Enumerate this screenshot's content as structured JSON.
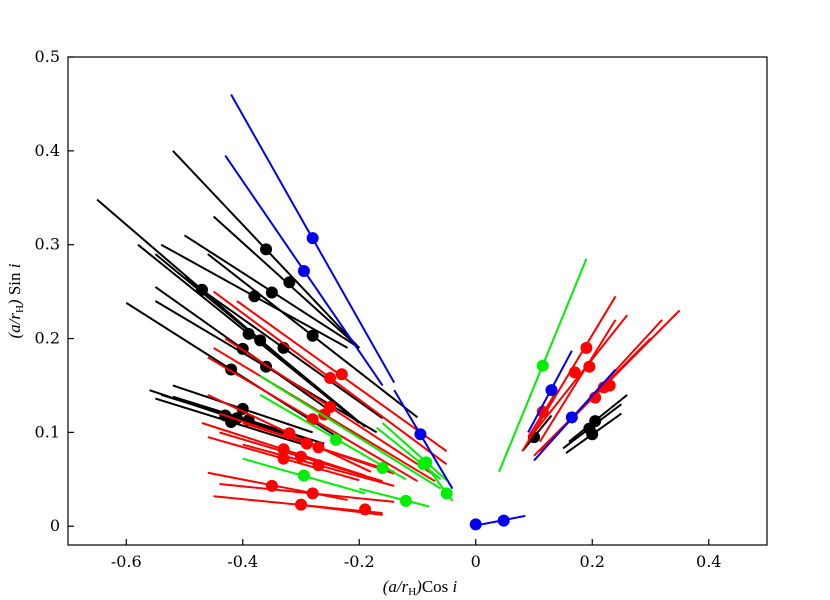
{
  "chart_data": {
    "type": "scatter",
    "xlabel": "(a/rH)Cos i",
    "ylabel": "(a/rH) Sin i",
    "xlim": [
      -0.7,
      0.5
    ],
    "ylim": [
      -0.02,
      0.5
    ],
    "x_ticks": [
      -0.6,
      -0.4,
      -0.2,
      0,
      0.2,
      0.4
    ],
    "x_tick_labels": [
      "-0.6",
      "-0.4",
      "-0.2",
      "0",
      "0.2",
      "0.4"
    ],
    "y_ticks": [
      0,
      0.1,
      0.2,
      0.3,
      0.4,
      0.5
    ],
    "y_tick_labels": [
      "0",
      "0.1",
      "0.2",
      "0.3",
      "0.4",
      "0.5"
    ],
    "grid": false,
    "colors": {
      "black": "#000000",
      "red": "#ff0000",
      "green": "#00ee00",
      "blue": "#0000ee"
    },
    "series": [
      {
        "color": "black",
        "points": [
          {
            "x": -0.36,
            "y": 0.295,
            "x1": -0.52,
            "y1": 0.4,
            "x2": -0.2,
            "y2": 0.19
          },
          {
            "x": -0.47,
            "y": 0.252,
            "x1": -0.65,
            "y1": 0.348,
            "x2": -0.29,
            "y2": 0.156
          },
          {
            "x": -0.35,
            "y": 0.249,
            "x1": -0.5,
            "y1": 0.31,
            "x2": -0.2,
            "y2": 0.19
          },
          {
            "x": -0.32,
            "y": 0.26,
            "x1": -0.45,
            "y1": 0.33,
            "x2": -0.2,
            "y2": 0.19
          },
          {
            "x": -0.38,
            "y": 0.245,
            "x1": -0.54,
            "y1": 0.3,
            "x2": -0.22,
            "y2": 0.19
          },
          {
            "x": -0.28,
            "y": 0.203,
            "x1": -0.46,
            "y1": 0.29,
            "x2": -0.1,
            "y2": 0.116
          },
          {
            "x": -0.39,
            "y": 0.205,
            "x1": -0.58,
            "y1": 0.3,
            "x2": -0.2,
            "y2": 0.11
          },
          {
            "x": -0.37,
            "y": 0.198,
            "x1": -0.55,
            "y1": 0.29,
            "x2": -0.19,
            "y2": 0.106
          },
          {
            "x": -0.4,
            "y": 0.189,
            "x1": -0.55,
            "y1": 0.255,
            "x2": -0.25,
            "y2": 0.123
          },
          {
            "x": -0.33,
            "y": 0.19,
            "x1": -0.5,
            "y1": 0.265,
            "x2": -0.16,
            "y2": 0.115
          },
          {
            "x": -0.36,
            "y": 0.17,
            "x1": -0.55,
            "y1": 0.24,
            "x2": -0.17,
            "y2": 0.1
          },
          {
            "x": -0.42,
            "y": 0.167,
            "x1": -0.6,
            "y1": 0.238,
            "x2": -0.24,
            "y2": 0.096
          },
          {
            "x": -0.4,
            "y": 0.125,
            "x1": -0.52,
            "y1": 0.15,
            "x2": -0.28,
            "y2": 0.1
          },
          {
            "x": -0.43,
            "y": 0.118,
            "x1": -0.56,
            "y1": 0.145,
            "x2": -0.3,
            "y2": 0.091
          },
          {
            "x": -0.41,
            "y": 0.115,
            "x1": -0.54,
            "y1": 0.14,
            "x2": -0.28,
            "y2": 0.09
          },
          {
            "x": -0.39,
            "y": 0.113,
            "x1": -0.52,
            "y1": 0.138,
            "x2": -0.26,
            "y2": 0.088
          },
          {
            "x": -0.42,
            "y": 0.111,
            "x1": -0.55,
            "y1": 0.136,
            "x2": -0.29,
            "y2": 0.086
          },
          {
            "x": 0.1,
            "y": 0.095,
            "x1": 0.08,
            "y1": 0.08,
            "x2": 0.13,
            "y2": 0.118
          },
          {
            "x": 0.205,
            "y": 0.112,
            "x1": 0.16,
            "y1": 0.09,
            "x2": 0.26,
            "y2": 0.14
          },
          {
            "x": 0.195,
            "y": 0.104,
            "x1": 0.15,
            "y1": 0.083,
            "x2": 0.25,
            "y2": 0.13
          },
          {
            "x": 0.2,
            "y": 0.098,
            "x1": 0.155,
            "y1": 0.078,
            "x2": 0.25,
            "y2": 0.12
          }
        ]
      },
      {
        "color": "red",
        "points": [
          {
            "x": -0.23,
            "y": 0.162,
            "x1": -0.41,
            "y1": 0.24,
            "x2": -0.05,
            "y2": 0.08
          },
          {
            "x": -0.25,
            "y": 0.158,
            "x1": -0.45,
            "y1": 0.25,
            "x2": -0.05,
            "y2": 0.066
          },
          {
            "x": -0.25,
            "y": 0.127,
            "x1": -0.43,
            "y1": 0.2,
            "x2": -0.07,
            "y2": 0.054
          },
          {
            "x": -0.26,
            "y": 0.119,
            "x1": -0.45,
            "y1": 0.19,
            "x2": -0.07,
            "y2": 0.048
          },
          {
            "x": -0.28,
            "y": 0.114,
            "x1": -0.46,
            "y1": 0.18,
            "x2": -0.1,
            "y2": 0.048
          },
          {
            "x": -0.32,
            "y": 0.099,
            "x1": -0.46,
            "y1": 0.14,
            "x2": -0.18,
            "y2": 0.058
          },
          {
            "x": -0.29,
            "y": 0.088,
            "x1": -0.44,
            "y1": 0.12,
            "x2": -0.14,
            "y2": 0.056
          },
          {
            "x": -0.33,
            "y": 0.082,
            "x1": -0.47,
            "y1": 0.11,
            "x2": -0.19,
            "y2": 0.054
          },
          {
            "x": -0.27,
            "y": 0.084,
            "x1": -0.4,
            "y1": 0.11,
            "x2": -0.14,
            "y2": 0.058
          },
          {
            "x": -0.3,
            "y": 0.074,
            "x1": -0.44,
            "y1": 0.1,
            "x2": -0.16,
            "y2": 0.048
          },
          {
            "x": -0.33,
            "y": 0.072,
            "x1": -0.46,
            "y1": 0.095,
            "x2": -0.2,
            "y2": 0.049
          },
          {
            "x": -0.27,
            "y": 0.065,
            "x1": -0.4,
            "y1": 0.087,
            "x2": -0.14,
            "y2": 0.043
          },
          {
            "x": -0.35,
            "y": 0.043,
            "x1": -0.46,
            "y1": 0.057,
            "x2": -0.22,
            "y2": 0.028
          },
          {
            "x": -0.28,
            "y": 0.035,
            "x1": -0.44,
            "y1": 0.045,
            "x2": -0.14,
            "y2": 0.026
          },
          {
            "x": -0.3,
            "y": 0.023,
            "x1": -0.45,
            "y1": 0.032,
            "x2": -0.16,
            "y2": 0.014
          },
          {
            "x": -0.19,
            "y": 0.018,
            "x1": -0.29,
            "y1": 0.022,
            "x2": -0.16,
            "y2": 0.012
          },
          {
            "x": 0.19,
            "y": 0.19,
            "x1": 0.08,
            "y1": 0.08,
            "x2": 0.24,
            "y2": 0.245
          },
          {
            "x": 0.17,
            "y": 0.164,
            "x1": 0.09,
            "y1": 0.092,
            "x2": 0.26,
            "y2": 0.225
          },
          {
            "x": 0.195,
            "y": 0.17,
            "x1": 0.11,
            "y1": 0.09,
            "x2": 0.24,
            "y2": 0.22
          },
          {
            "x": 0.23,
            "y": 0.15,
            "x1": 0.12,
            "y1": 0.085,
            "x2": 0.32,
            "y2": 0.22
          },
          {
            "x": 0.22,
            "y": 0.148,
            "x1": 0.11,
            "y1": 0.08,
            "x2": 0.35,
            "y2": 0.23
          },
          {
            "x": 0.205,
            "y": 0.137,
            "x1": 0.1,
            "y1": 0.075,
            "x2": 0.3,
            "y2": 0.2
          },
          {
            "x": 0.115,
            "y": 0.122,
            "x1": 0.09,
            "y1": 0.095,
            "x2": 0.14,
            "y2": 0.145
          }
        ]
      },
      {
        "color": "green",
        "points": [
          {
            "x": 0.115,
            "y": 0.171,
            "x1": 0.04,
            "y1": 0.058,
            "x2": 0.19,
            "y2": 0.285
          },
          {
            "x": -0.16,
            "y": 0.062,
            "x1": -0.37,
            "y1": 0.16,
            "x2": -0.06,
            "y2": 0.04
          },
          {
            "x": -0.24,
            "y": 0.092,
            "x1": -0.37,
            "y1": 0.14,
            "x2": -0.12,
            "y2": 0.05
          },
          {
            "x": -0.09,
            "y": 0.066,
            "x1": -0.17,
            "y1": 0.105,
            "x2": -0.06,
            "y2": 0.05
          },
          {
            "x": -0.085,
            "y": 0.068,
            "x1": -0.16,
            "y1": 0.11,
            "x2": -0.05,
            "y2": 0.049
          },
          {
            "x": -0.295,
            "y": 0.054,
            "x1": -0.4,
            "y1": 0.072,
            "x2": -0.19,
            "y2": 0.035
          },
          {
            "x": -0.12,
            "y": 0.027,
            "x1": -0.2,
            "y1": 0.04,
            "x2": -0.08,
            "y2": 0.021
          },
          {
            "x": -0.05,
            "y": 0.035,
            "x1": -0.09,
            "y1": 0.068,
            "x2": -0.04,
            "y2": 0.027
          }
        ]
      },
      {
        "color": "blue",
        "points": [
          {
            "x": -0.28,
            "y": 0.307,
            "x1": -0.42,
            "y1": 0.46,
            "x2": -0.14,
            "y2": 0.153
          },
          {
            "x": -0.295,
            "y": 0.272,
            "x1": -0.43,
            "y1": 0.395,
            "x2": -0.16,
            "y2": 0.15
          },
          {
            "x": -0.095,
            "y": 0.098,
            "x1": -0.14,
            "y1": 0.145,
            "x2": -0.04,
            "y2": 0.04
          },
          {
            "x": 0.13,
            "y": 0.145,
            "x1": 0.09,
            "y1": 0.1,
            "x2": 0.165,
            "y2": 0.187
          },
          {
            "x": 0.165,
            "y": 0.116,
            "x1": 0.1,
            "y1": 0.07,
            "x2": 0.24,
            "y2": 0.167
          },
          {
            "x": 0.0,
            "y": 0.002,
            "x1": 0.0,
            "y1": 0.0,
            "x2": 0.0,
            "y2": 0.0
          },
          {
            "x": 0.048,
            "y": 0.006,
            "x1": 0.01,
            "y1": 0.002,
            "x2": 0.085,
            "y2": 0.011
          }
        ]
      }
    ]
  }
}
